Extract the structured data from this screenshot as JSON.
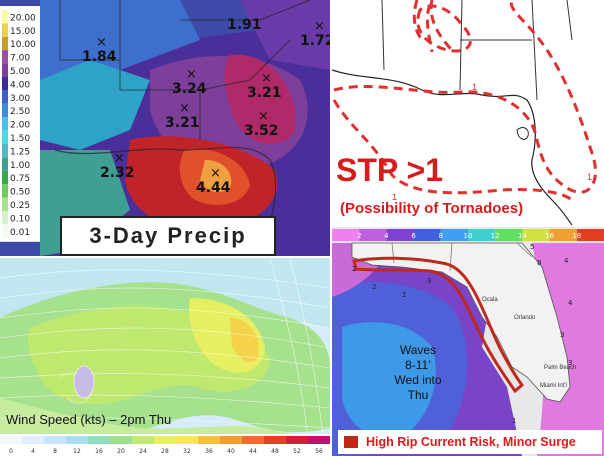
{
  "precip": {
    "title": "3-Day Precip",
    "legend": [
      "20.00",
      "15.00",
      "10.00",
      "7.00",
      "5.00",
      "4.00",
      "3.00",
      "2.50",
      "2.00",
      "1.50",
      "1.25",
      "1.00",
      "0.75",
      "0.50",
      "0.25",
      "0.10",
      "0.01"
    ],
    "legend_colors": [
      "#fdfd9c",
      "#e9d34a",
      "#c9a030",
      "#9e4ea0",
      "#7e3f9a",
      "#3b2ca0",
      "#3a61c9",
      "#3e8bd8",
      "#42c2e6",
      "#4ad9e4",
      "#4fb9c6",
      "#3f9f93",
      "#37ab4e",
      "#6fcb5f",
      "#a7e28a",
      "#d8f0c8",
      "#f4fbf0"
    ],
    "points": [
      {
        "label": "1.91",
        "marked": false
      },
      {
        "label": "1.72",
        "marked": true
      },
      {
        "label": "1.84",
        "marked": true
      },
      {
        "label": "3.24",
        "marked": true
      },
      {
        "label": "3.21",
        "marked": true
      },
      {
        "label": "3.21",
        "marked": true
      },
      {
        "label": "3.52",
        "marked": true
      },
      {
        "label": "2.32",
        "marked": true
      },
      {
        "label": "4.44",
        "marked": true
      }
    ]
  },
  "stp": {
    "title": "STP >1",
    "subtitle": "(Possibility of Tornadoes)",
    "contour_labels": [
      "1",
      "1",
      "1"
    ],
    "colors": {
      "title": "#d81b1b",
      "contour": "#e03030"
    }
  },
  "wind": {
    "caption": "Wind Speed (kts) – 2pm Thu",
    "scale_ticks": [
      "0",
      "4",
      "8",
      "12",
      "16",
      "20",
      "24",
      "28",
      "32",
      "36",
      "40",
      "44",
      "48",
      "52",
      "56"
    ],
    "scale_colors": [
      "#f2f8ff",
      "#e0eeff",
      "#c8e4ff",
      "#a8dcf0",
      "#90e0c0",
      "#9ee08a",
      "#c4ec6c",
      "#e8f060",
      "#f8e84c",
      "#f8c038",
      "#f49c30",
      "#ee7028",
      "#e44024",
      "#d41e3a",
      "#c01070"
    ]
  },
  "waves": {
    "scale_ticks": [
      "2",
      "4",
      "6",
      "8",
      "10",
      "12",
      "14",
      "16",
      "18"
    ],
    "scale_colors": [
      "#f080f0",
      "#c060e0",
      "#8040d0",
      "#4060e0",
      "#40a0f0",
      "#40d0d0",
      "#60e060",
      "#d0e040",
      "#f0a030",
      "#e04020"
    ],
    "cities": [
      "Ocala",
      "Orlando",
      "Palm Beach",
      "Miami Int'l"
    ],
    "point_labels": [
      "5",
      "8",
      "4",
      "2",
      "2",
      "3",
      "1",
      "4",
      "3",
      "3",
      "1"
    ],
    "callout": "Waves\n8-11'\nWed into\nThu",
    "callout_lines": [
      "Waves",
      "8-11’",
      "Wed into",
      "Thu"
    ],
    "legend_label": "High Rip Current Risk, Minor Surge",
    "colors": {
      "risk": "#c0281c",
      "legend_text": "#e01818"
    }
  }
}
